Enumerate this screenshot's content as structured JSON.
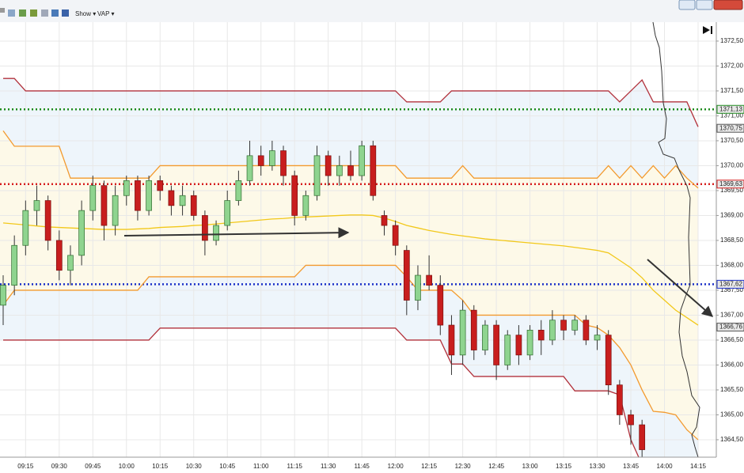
{
  "toolbar": {
    "items": [
      "Show ▾",
      "VAP ▾"
    ]
  },
  "chart_data": {
    "type": "candlestick",
    "categories": [
      null,
      null,
      "09:15",
      null,
      null,
      "09:30",
      null,
      null,
      "09:45",
      null,
      null,
      "10:00",
      null,
      null,
      "10:15",
      null,
      null,
      "10:30",
      null,
      null,
      "10:45",
      null,
      null,
      "11:00",
      null,
      null,
      "11:15",
      null,
      null,
      "11:30",
      null,
      null,
      "11:45",
      null,
      null,
      "12:00",
      null,
      null,
      "12:15",
      null,
      null,
      "12:30",
      null,
      null,
      "12:45",
      null,
      null,
      "13:00",
      null,
      null,
      "13:15",
      null,
      null,
      "13:30",
      null,
      null,
      "13:45",
      null,
      null,
      "14:00",
      null,
      null,
      "14:15"
    ],
    "open": [
      1367.2,
      1367.6,
      1368.4,
      1369.1,
      1369.3,
      1368.5,
      1367.9,
      1368.2,
      1369.1,
      1369.6,
      1368.8,
      1369.4,
      1369.7,
      1369.1,
      1369.7,
      1369.5,
      1369.2,
      1369.4,
      1369.0,
      1368.5,
      1368.8,
      1369.3,
      1369.7,
      1370.2,
      1370.0,
      1370.3,
      1369.8,
      1369.0,
      1369.4,
      1370.2,
      1369.8,
      1370.0,
      1369.8,
      1370.4,
      1369.0,
      1368.8,
      1368.3,
      1367.3,
      1367.8,
      1367.6,
      1366.8,
      1366.2,
      1367.1,
      1366.3,
      1366.8,
      1366.0,
      1366.6,
      1366.2,
      1366.7,
      1366.5,
      1366.9,
      1366.7,
      1366.9,
      1366.5,
      1366.6,
      1365.6,
      1365.0,
      1364.8,
      null,
      null,
      null,
      null,
      null
    ],
    "high": [
      1367.8,
      1368.6,
      1369.3,
      1369.6,
      1369.4,
      1368.7,
      1368.4,
      1369.3,
      1369.8,
      1369.7,
      1369.6,
      1369.8,
      1369.8,
      1369.8,
      1369.8,
      1369.6,
      1369.6,
      1369.5,
      1369.1,
      1368.9,
      1369.5,
      1369.9,
      1370.5,
      1370.4,
      1370.5,
      1370.4,
      1369.9,
      1369.5,
      1370.4,
      1370.3,
      1370.2,
      1370.3,
      1370.5,
      1370.5,
      1369.1,
      1368.9,
      1368.4,
      1368.0,
      1368.2,
      1367.8,
      1367.0,
      1367.3,
      1367.2,
      1366.9,
      1366.9,
      1366.7,
      1366.8,
      1366.8,
      1366.9,
      1367.1,
      1367.0,
      1367.0,
      1367.0,
      1366.8,
      1366.7,
      1365.7,
      1365.1,
      1364.9,
      null,
      null,
      null,
      null,
      null
    ],
    "low": [
      1366.8,
      1367.4,
      1368.2,
      1368.8,
      1368.3,
      1367.7,
      1367.6,
      1368.0,
      1368.9,
      1368.5,
      1368.6,
      1369.2,
      1368.9,
      1369.0,
      1369.3,
      1369.0,
      1369.0,
      1368.9,
      1368.2,
      1368.4,
      1368.7,
      1369.2,
      1369.6,
      1369.8,
      1369.9,
      1369.6,
      1368.8,
      1368.9,
      1369.3,
      1369.6,
      1369.6,
      1369.7,
      1369.7,
      1369.3,
      1368.6,
      1368.2,
      1367.0,
      1367.1,
      1367.5,
      1366.6,
      1365.8,
      1366.0,
      1366.1,
      1366.2,
      1365.7,
      1365.9,
      1366.0,
      1366.1,
      1366.2,
      1366.4,
      1366.5,
      1366.6,
      1366.4,
      1366.3,
      1365.4,
      1364.8,
      1364.4,
      1364.1,
      null,
      null,
      null,
      null,
      null
    ],
    "close": [
      1367.6,
      1368.4,
      1369.1,
      1369.3,
      1368.5,
      1367.9,
      1368.2,
      1369.1,
      1369.6,
      1368.8,
      1369.4,
      1369.7,
      1369.1,
      1369.7,
      1369.5,
      1369.2,
      1369.4,
      1369.0,
      1368.5,
      1368.8,
      1369.3,
      1369.7,
      1370.2,
      1370.0,
      1370.3,
      1369.8,
      1369.0,
      1369.4,
      1370.2,
      1369.8,
      1370.0,
      1369.8,
      1370.4,
      1369.4,
      1368.8,
      1368.4,
      1367.3,
      1367.8,
      1367.6,
      1366.8,
      1366.2,
      1367.1,
      1366.3,
      1366.8,
      1366.0,
      1366.6,
      1366.2,
      1366.7,
      1366.5,
      1366.9,
      1366.7,
      1366.9,
      1366.5,
      1366.6,
      1365.6,
      1365.0,
      1364.8,
      1364.3,
      null,
      null,
      null,
      null,
      null
    ],
    "up_color": "#8fd48f",
    "down_color": "#c81e1e",
    "series": [
      {
        "color": "#b2323c",
        "values": [
          1371.75,
          1371.75,
          1371.5,
          1371.5,
          1371.5,
          1371.5,
          1371.5,
          1371.5,
          1371.5,
          1371.5,
          1371.5,
          1371.5,
          1371.5,
          1371.5,
          1371.5,
          1371.5,
          1371.5,
          1371.5,
          1371.5,
          1371.5,
          1371.5,
          1371.5,
          1371.5,
          1371.5,
          1371.5,
          1371.5,
          1371.5,
          1371.5,
          1371.5,
          1371.5,
          1371.5,
          1371.5,
          1371.5,
          1371.5,
          1371.5,
          1371.5,
          1371.28,
          1371.28,
          1371.28,
          1371.28,
          1371.5,
          1371.5,
          1371.5,
          1371.5,
          1371.5,
          1371.5,
          1371.5,
          1371.5,
          1371.5,
          1371.5,
          1371.5,
          1371.5,
          1371.5,
          1371.5,
          1371.5,
          1371.28,
          1371.5,
          1371.72,
          1371.28,
          1371.28,
          1371.28,
          1371.28,
          1370.78
        ]
      },
      {
        "color": "#f39a2e",
        "values": [
          1370.7,
          1370.39,
          1370.39,
          1370.39,
          1370.39,
          1370.39,
          1369.75,
          1369.75,
          1369.75,
          1369.75,
          1369.75,
          1369.75,
          1369.75,
          1369.75,
          1370.0,
          1370.0,
          1370.0,
          1370.0,
          1370.0,
          1370.0,
          1370.0,
          1370.0,
          1370.0,
          1370.0,
          1370.0,
          1370.0,
          1370.0,
          1370.0,
          1370.0,
          1370.0,
          1370.0,
          1370.0,
          1370.0,
          1370.0,
          1370.0,
          1370.0,
          1369.75,
          1369.75,
          1369.75,
          1369.75,
          1369.75,
          1370.0,
          1369.75,
          1369.75,
          1369.75,
          1369.75,
          1369.75,
          1369.75,
          1369.75,
          1369.75,
          1369.75,
          1369.75,
          1369.75,
          1369.75,
          1370.0,
          1369.75,
          1370.0,
          1369.75,
          1370.0,
          1369.75,
          1370.0,
          1369.75,
          1369.55
        ]
      },
      {
        "color": "#f2c81a",
        "values": [
          1368.85,
          1368.83,
          1368.81,
          1368.79,
          1368.77,
          1368.76,
          1368.75,
          1368.74,
          1368.73,
          1368.72,
          1368.72,
          1368.72,
          1368.73,
          1368.74,
          1368.76,
          1368.77,
          1368.78,
          1368.8,
          1368.81,
          1368.83,
          1368.85,
          1368.87,
          1368.89,
          1368.91,
          1368.93,
          1368.94,
          1368.96,
          1368.97,
          1368.98,
          1368.99,
          1369.0,
          1369.01,
          1369.01,
          1369.0,
          1368.95,
          1368.88,
          1368.8,
          1368.75,
          1368.7,
          1368.66,
          1368.62,
          1368.59,
          1368.56,
          1368.53,
          1368.51,
          1368.49,
          1368.47,
          1368.45,
          1368.43,
          1368.41,
          1368.39,
          1368.36,
          1368.33,
          1368.3,
          1368.25,
          1368.1,
          1367.95,
          1367.75,
          1367.5,
          1367.3,
          1367.1,
          1366.95,
          1366.8
        ]
      },
      {
        "color": "#f39a2e",
        "values": [
          1367.2,
          1367.5,
          1367.5,
          1367.5,
          1367.5,
          1367.5,
          1367.5,
          1367.5,
          1367.5,
          1367.5,
          1367.5,
          1367.5,
          1367.5,
          1367.77,
          1367.77,
          1367.77,
          1367.77,
          1367.77,
          1367.77,
          1367.77,
          1367.77,
          1367.77,
          1367.77,
          1367.77,
          1367.77,
          1367.77,
          1367.77,
          1368.0,
          1368.0,
          1368.0,
          1368.0,
          1368.0,
          1368.0,
          1368.0,
          1368.0,
          1368.0,
          1367.77,
          1367.5,
          1367.5,
          1367.5,
          1367.5,
          1367.3,
          1367.0,
          1367.0,
          1367.0,
          1367.0,
          1367.0,
          1367.0,
          1367.0,
          1367.0,
          1367.0,
          1367.0,
          1366.8,
          1366.75,
          1366.6,
          1366.35,
          1366.0,
          1365.5,
          1365.07,
          1365.05,
          1365.0,
          1364.7,
          1364.5
        ]
      },
      {
        "color": "#b2323c",
        "values": [
          1366.5,
          1366.5,
          1366.5,
          1366.5,
          1366.5,
          1366.5,
          1366.5,
          1366.5,
          1366.5,
          1366.5,
          1366.5,
          1366.5,
          1366.5,
          1366.5,
          1366.74,
          1366.74,
          1366.74,
          1366.74,
          1366.74,
          1366.74,
          1366.74,
          1366.74,
          1366.74,
          1366.74,
          1366.74,
          1366.74,
          1366.74,
          1366.74,
          1366.74,
          1366.74,
          1366.74,
          1366.74,
          1366.74,
          1366.74,
          1366.74,
          1366.74,
          1366.5,
          1366.5,
          1366.5,
          1366.5,
          1366.02,
          1366.02,
          1365.77,
          1365.77,
          1365.77,
          1365.77,
          1365.77,
          1365.77,
          1365.77,
          1365.77,
          1365.77,
          1365.48,
          1365.48,
          1365.48,
          1365.48,
          1365.4,
          1364.5,
          1364.0,
          null,
          null,
          null,
          null,
          null
        ]
      }
    ],
    "ylim": [
      1364.15,
      1372.88
    ],
    "yticks": [
      {
        "value": 1364.5,
        "label": "1364,50"
      },
      {
        "value": 1365,
        "label": "1365,00"
      },
      {
        "value": 1365.5,
        "label": "1365,50"
      },
      {
        "value": 1366,
        "label": "1366,00"
      },
      {
        "value": 1366.5,
        "label": "1366,50"
      },
      {
        "value": 1367,
        "label": "1367,00"
      },
      {
        "value": 1367.5,
        "label": "1367,50"
      },
      {
        "value": 1368,
        "label": "1368,00"
      },
      {
        "value": 1368.5,
        "label": "1368,50"
      },
      {
        "value": 1369,
        "label": "1369,00"
      },
      {
        "value": 1369.5,
        "label": "1369,50"
      },
      {
        "value": 1370,
        "label": "1370,00"
      },
      {
        "value": 1370.5,
        "label": "1370,50"
      },
      {
        "value": 1371,
        "label": "1371,00"
      },
      {
        "value": 1371.5,
        "label": "1371,50"
      },
      {
        "value": 1372,
        "label": "1372,00"
      },
      {
        "value": 1372.5,
        "label": "1372,50"
      }
    ],
    "grid": true,
    "levels": [
      {
        "value": 1371.13,
        "label": "1371,13",
        "color": "#1e8c1e"
      },
      {
        "value": 1369.63,
        "label": "1369,63",
        "color": "#d61e1e"
      },
      {
        "value": 1367.62,
        "label": "1367,62",
        "color": "#1a2fc8"
      }
    ],
    "markers": [
      {
        "value": 1370.75,
        "label": "1370,75"
      },
      {
        "value": 1366.76,
        "label": "1366,76"
      }
    ]
  }
}
